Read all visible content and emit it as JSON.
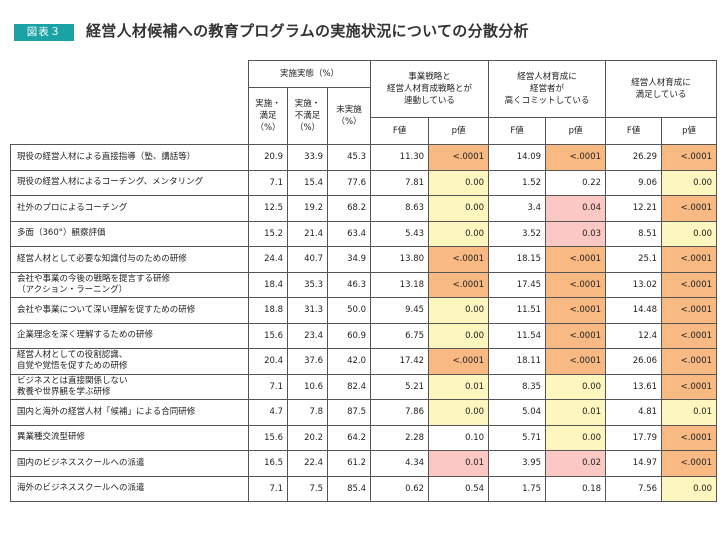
{
  "badge": "図表３",
  "title": "経営人材候補への教育プログラムの実施状況についての分散分析",
  "header": {
    "group1": "実施実態（%）",
    "group2": "事業戦略と\n経営人材育成戦略とが\n連動している",
    "group3": "経営人材育成に\n経営者が\n高くコミットしている",
    "group4": "経営人材育成に\n満足している",
    "sub1": "実施・\n満足\n（%）",
    "sub2": "実施・\n不満足\n（%）",
    "sub3": "未実施\n（%）",
    "f_label": "F値",
    "p_label": "p値"
  },
  "rows": [
    {
      "label": "現役の経営人材による直接指導（塾、講話等）",
      "v": [
        "20.9",
        "33.9",
        "45.3",
        "11.30",
        "<.0001",
        "14.09",
        "<.0001",
        "26.29",
        "<.0001"
      ],
      "fill": [
        "strong",
        "strong",
        "strong"
      ]
    },
    {
      "label": "現役の経営人材によるコーチング、メンタリング",
      "v": [
        "7.1",
        "15.4",
        "77.6",
        "7.81",
        "0.00",
        "1.52",
        "0.22",
        "9.06",
        "0.00"
      ],
      "fill": [
        "y",
        "",
        "y"
      ]
    },
    {
      "label": "社外のプロによるコーチング",
      "v": [
        "12.5",
        "19.2",
        "68.2",
        "8.63",
        "0.00",
        "3.4",
        "0.04",
        "12.21",
        "<.0001"
      ],
      "fill": [
        "y",
        "light",
        "strong"
      ]
    },
    {
      "label": "多面（360°）観察評価",
      "v": [
        "15.2",
        "21.4",
        "63.4",
        "5.43",
        "0.00",
        "3.52",
        "0.03",
        "8.51",
        "0.00"
      ],
      "fill": [
        "y",
        "light",
        "y"
      ]
    },
    {
      "label": "経営人材として必要な知識付与のための研修",
      "v": [
        "24.4",
        "40.7",
        "34.9",
        "13.80",
        "<.0001",
        "18.15",
        "<.0001",
        "25.1",
        "<.0001"
      ],
      "fill": [
        "strong",
        "strong",
        "strong"
      ]
    },
    {
      "label": "会社や事業の今後の戦略を提言する研修\n（アクション・ラーニング）",
      "v": [
        "18.4",
        "35.3",
        "46.3",
        "13.18",
        "<.0001",
        "17.45",
        "<.0001",
        "13.02",
        "<.0001"
      ],
      "fill": [
        "strong",
        "strong",
        "strong"
      ]
    },
    {
      "label": "会社や事業について深い理解を促すための研修",
      "v": [
        "18.8",
        "31.3",
        "50.0",
        "9.45",
        "0.00",
        "11.51",
        "<.0001",
        "14.48",
        "<.0001"
      ],
      "fill": [
        "y",
        "strong",
        "strong"
      ]
    },
    {
      "label": "企業理念を深く理解するための研修",
      "v": [
        "15.6",
        "23.4",
        "60.9",
        "6.75",
        "0.00",
        "11.54",
        "<.0001",
        "12.4",
        "<.0001"
      ],
      "fill": [
        "y",
        "strong",
        "strong"
      ]
    },
    {
      "label": "経営人材としての役割認識、\n自覚や覚悟を促すための研修",
      "v": [
        "20.4",
        "37.6",
        "42.0",
        "17.42",
        "<.0001",
        "18.11",
        "<.0001",
        "26.06",
        "<.0001"
      ],
      "fill": [
        "strong",
        "strong",
        "strong"
      ]
    },
    {
      "label": "ビジネスとは直接関係しない\n教養や世界観を学ぶ研修",
      "v": [
        "7.1",
        "10.6",
        "82.4",
        "5.21",
        "0.01",
        "8.35",
        "0.00",
        "13.61",
        "<.0001"
      ],
      "fill": [
        "y",
        "y",
        "strong"
      ]
    },
    {
      "label": "国内と海外の経営人材「候補」による合同研修",
      "v": [
        "4.7",
        "7.8",
        "87.5",
        "7.86",
        "0.00",
        "5.04",
        "0.01",
        "4.81",
        "0.01"
      ],
      "fill": [
        "y",
        "y",
        "y"
      ]
    },
    {
      "label": "異業種交流型研修",
      "v": [
        "15.6",
        "20.2",
        "64.2",
        "2.28",
        "0.10",
        "5.71",
        "0.00",
        "17.79",
        "<.0001"
      ],
      "fill": [
        "",
        "y",
        "strong"
      ]
    },
    {
      "label": "国内のビジネススクールへの派遣",
      "v": [
        "16.5",
        "22.4",
        "61.2",
        "4.34",
        "0.01",
        "3.95",
        "0.02",
        "14.97",
        "<.0001"
      ],
      "fill": [
        "light",
        "light",
        "strong"
      ]
    },
    {
      "label": "海外のビジネススクールへの派遣",
      "v": [
        "7.1",
        "7.5",
        "85.4",
        "0.62",
        "0.54",
        "1.75",
        "0.18",
        "7.56",
        "0.00"
      ],
      "fill": [
        "",
        "",
        "y"
      ]
    }
  ],
  "colors": {
    "badge": "#1aa2a4",
    "strong": "#f8b983",
    "yellow": "#fef6bf",
    "light": "#fbc8c4"
  }
}
